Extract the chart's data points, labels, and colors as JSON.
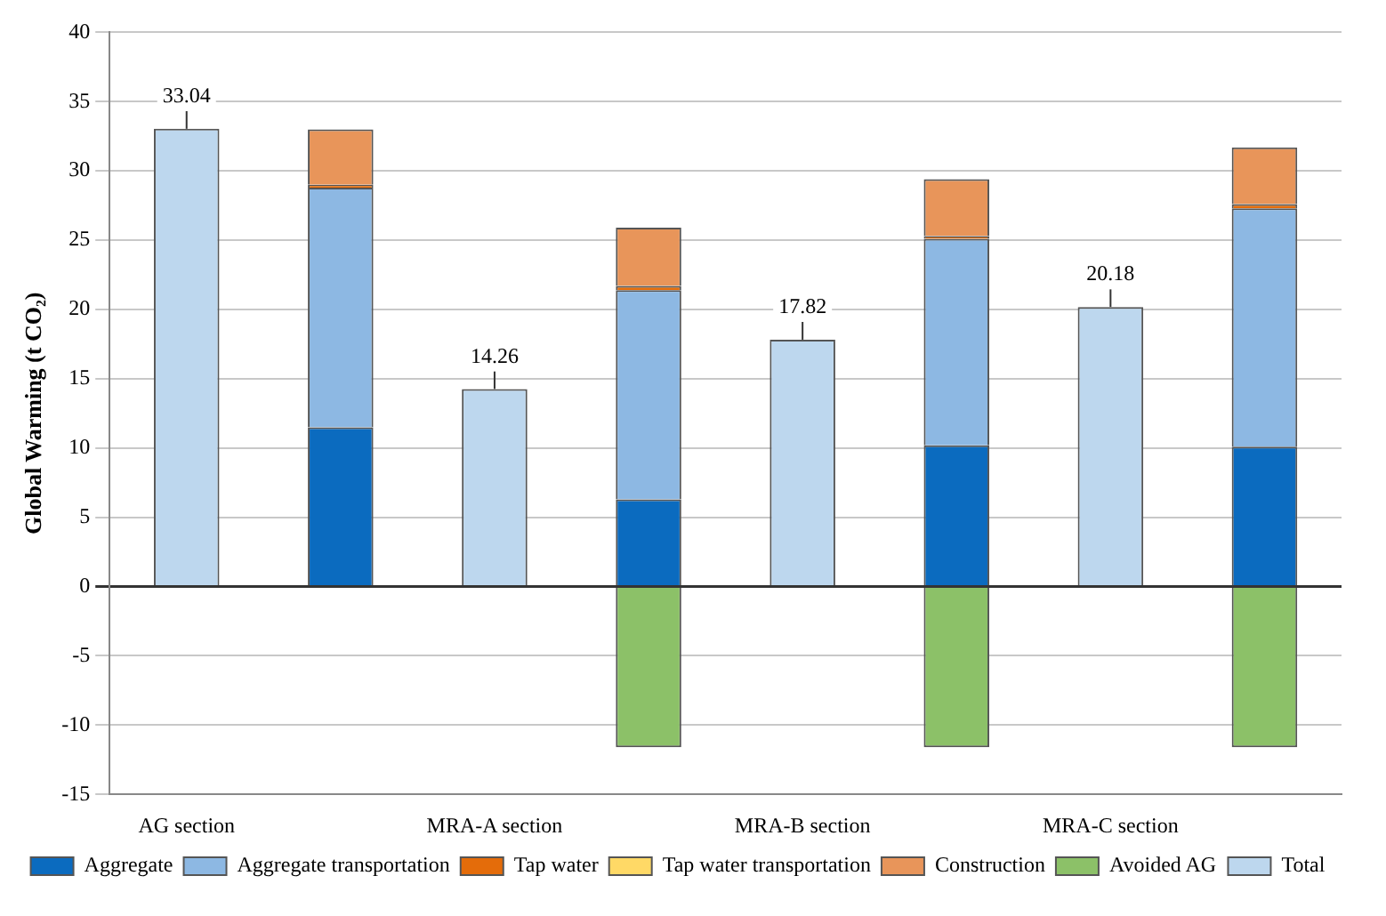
{
  "chart_data": {
    "type": "bar",
    "ylabel": "Global Warming (t CO₂)",
    "categories": [
      "AG section",
      null,
      "MRA-A section",
      null,
      "MRA-B section",
      null,
      "MRA-C section",
      null
    ],
    "stacked": true,
    "ylim": [
      -15,
      40
    ],
    "yticks": [
      -15,
      -10,
      -5,
      0,
      5,
      10,
      15,
      20,
      25,
      30,
      35,
      40
    ],
    "grid": "y",
    "legend": "bottom",
    "series": [
      {
        "name": "Aggregate",
        "color": "#0b6bbf",
        "values": [
          null,
          11.5,
          null,
          6.3,
          null,
          10.2,
          null,
          10.1
        ]
      },
      {
        "name": "Aggregate transportation",
        "color": "#8db8e3",
        "values": [
          null,
          17.3,
          null,
          15.1,
          null,
          14.9,
          null,
          17.2
        ]
      },
      {
        "name": "Tap water",
        "color": "#e46c0a",
        "values": [
          null,
          0.2,
          null,
          0.3,
          null,
          0.2,
          null,
          0.3
        ]
      },
      {
        "name": "Tap water transportation",
        "color": "#ffd966",
        "values": [
          null,
          null,
          null,
          null,
          null,
          null,
          null,
          null
        ]
      },
      {
        "name": "Construction",
        "color": "#e8955a",
        "values": [
          null,
          4.0,
          null,
          4.2,
          null,
          4.1,
          null,
          4.1
        ]
      },
      {
        "name": "Avoided AG",
        "color": "#8cc168",
        "values": [
          null,
          null,
          null,
          -11.6,
          null,
          -11.6,
          null,
          -11.6
        ]
      },
      {
        "name": "Total",
        "color": "#bdd7ee",
        "values": [
          33.04,
          null,
          14.26,
          null,
          17.82,
          null,
          20.18,
          null
        ],
        "value_labels": [
          "33.04",
          null,
          "14.26",
          null,
          "17.82",
          null,
          "20.18",
          null
        ]
      }
    ]
  }
}
